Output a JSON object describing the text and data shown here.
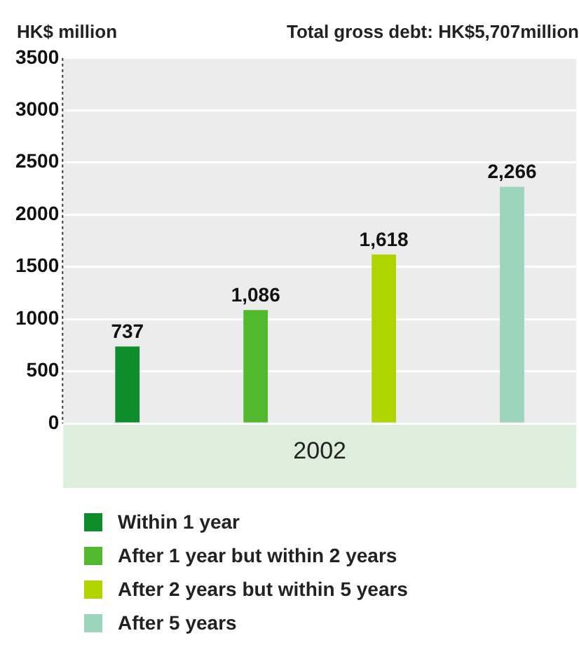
{
  "chart_data": {
    "type": "bar",
    "ylabel": "HK$ million",
    "annotations": [
      "Total gross debt: HK$5,707million"
    ],
    "categories": [
      "2002"
    ],
    "series": [
      {
        "name": "Within 1 year",
        "color": "#0f8c2b",
        "values": [
          737
        ],
        "value_labels": [
          "737"
        ]
      },
      {
        "name": "After 1 year but within 2 years",
        "color": "#52b82e",
        "values": [
          1086
        ],
        "value_labels": [
          "1,086"
        ]
      },
      {
        "name": "After 2 years but within 5 years",
        "color": "#afd400",
        "values": [
          1618
        ],
        "value_labels": [
          "1,618"
        ]
      },
      {
        "name": "After 5 years",
        "color": "#9dd4bc",
        "values": [
          2266
        ],
        "value_labels": [
          "2,266"
        ]
      }
    ],
    "ylim": [
      0,
      3500
    ],
    "yticks": [
      0,
      500,
      1000,
      1500,
      2000,
      2500,
      3000,
      3500
    ],
    "grid": "y",
    "legend": "bottom"
  }
}
